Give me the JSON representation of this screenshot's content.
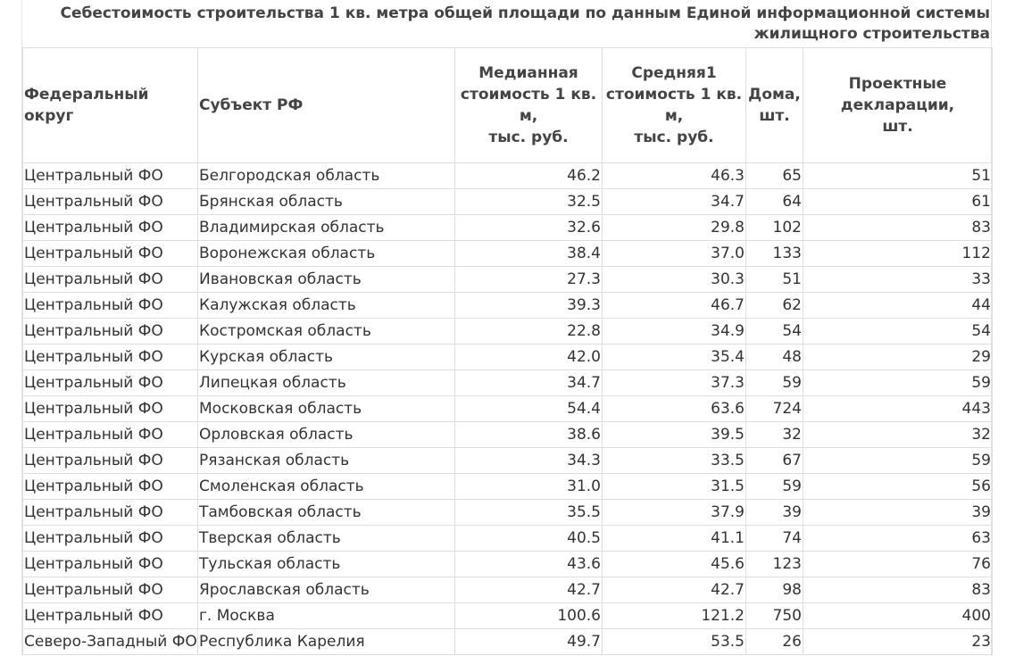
{
  "caption": {
    "line1": "Себестоимость строительства 1 кв. метра общей площади по данным Единой информационной системы",
    "line2": "жилищного строительства"
  },
  "headers": {
    "okrug": "Федеральный округ",
    "subject": "Субъект РФ",
    "median": [
      "Медианная",
      "стоимость 1 кв.",
      "м,",
      "тыс. руб."
    ],
    "average": [
      "Средняя1",
      "стоимость 1 кв.",
      "м,",
      "тыс. руб."
    ],
    "houses": [
      "Дома,",
      "шт."
    ],
    "declarations": [
      "Проектные",
      "декларации,",
      "шт."
    ]
  },
  "rows": [
    {
      "okrug": "Центральный ФО",
      "subject": "Белгородская область",
      "median": "46.2",
      "average": "46.3",
      "houses": "65",
      "decl": "51"
    },
    {
      "okrug": "Центральный ФО",
      "subject": "Брянская область",
      "median": "32.5",
      "average": "34.7",
      "houses": "64",
      "decl": "61"
    },
    {
      "okrug": "Центральный ФО",
      "subject": "Владимирская область",
      "median": "32.6",
      "average": "29.8",
      "houses": "102",
      "decl": "83"
    },
    {
      "okrug": "Центральный ФО",
      "subject": "Воронежская область",
      "median": "38.4",
      "average": "37.0",
      "houses": "133",
      "decl": "112"
    },
    {
      "okrug": "Центральный ФО",
      "subject": "Ивановская область",
      "median": "27.3",
      "average": "30.3",
      "houses": "51",
      "decl": "33"
    },
    {
      "okrug": "Центральный ФО",
      "subject": "Калужская область",
      "median": "39.3",
      "average": "46.7",
      "houses": "62",
      "decl": "44"
    },
    {
      "okrug": "Центральный ФО",
      "subject": "Костромская область",
      "median": "22.8",
      "average": "34.9",
      "houses": "54",
      "decl": "54"
    },
    {
      "okrug": "Центральный ФО",
      "subject": "Курская область",
      "median": "42.0",
      "average": "35.4",
      "houses": "48",
      "decl": "29"
    },
    {
      "okrug": "Центральный ФО",
      "subject": "Липецкая область",
      "median": "34.7",
      "average": "37.3",
      "houses": "59",
      "decl": "59"
    },
    {
      "okrug": "Центральный ФО",
      "subject": "Московская область",
      "median": "54.4",
      "average": "63.6",
      "houses": "724",
      "decl": "443"
    },
    {
      "okrug": "Центральный ФО",
      "subject": "Орловская область",
      "median": "38.6",
      "average": "39.5",
      "houses": "32",
      "decl": "32"
    },
    {
      "okrug": "Центральный ФО",
      "subject": "Рязанская область",
      "median": "34.3",
      "average": "33.5",
      "houses": "67",
      "decl": "59"
    },
    {
      "okrug": "Центральный ФО",
      "subject": "Смоленская область",
      "median": "31.0",
      "average": "31.5",
      "houses": "59",
      "decl": "56"
    },
    {
      "okrug": "Центральный ФО",
      "subject": "Тамбовская область",
      "median": "35.5",
      "average": "37.9",
      "houses": "39",
      "decl": "39"
    },
    {
      "okrug": "Центральный ФО",
      "subject": "Тверская область",
      "median": "40.5",
      "average": "41.1",
      "houses": "74",
      "decl": "63"
    },
    {
      "okrug": "Центральный ФО",
      "subject": "Тульская область",
      "median": "43.6",
      "average": "45.6",
      "houses": "123",
      "decl": "76"
    },
    {
      "okrug": "Центральный ФО",
      "subject": "Ярославская область",
      "median": "42.7",
      "average": "42.7",
      "houses": "98",
      "decl": "83"
    },
    {
      "okrug": "Центральный ФО",
      "subject": "г. Москва",
      "median": "100.6",
      "average": "121.2",
      "houses": "750",
      "decl": "400"
    },
    {
      "okrug": "Северо-Западный ФО",
      "subject": "Республика Карелия",
      "median": "49.7",
      "average": "53.5",
      "houses": "26",
      "decl": "23"
    }
  ]
}
